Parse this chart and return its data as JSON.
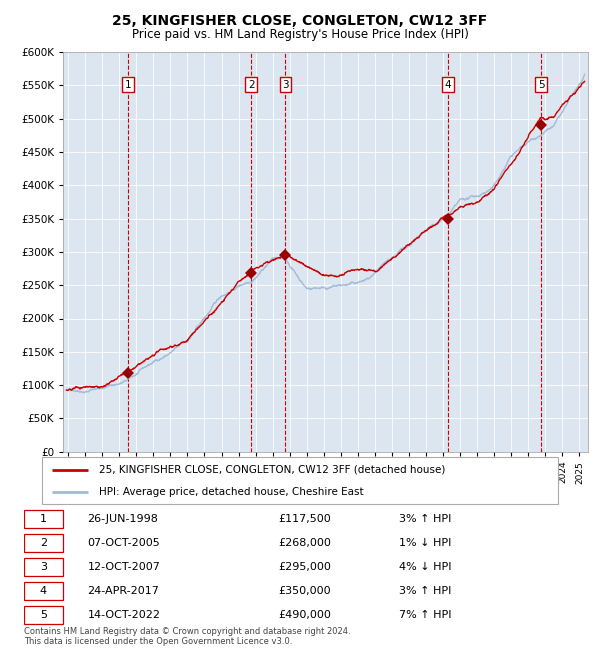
{
  "title": "25, KINGFISHER CLOSE, CONGLETON, CW12 3FF",
  "subtitle": "Price paid vs. HM Land Registry's House Price Index (HPI)",
  "ylim": [
    0,
    600000
  ],
  "yticks": [
    0,
    50000,
    100000,
    150000,
    200000,
    250000,
    300000,
    350000,
    400000,
    450000,
    500000,
    550000,
    600000
  ],
  "ytick_labels": [
    "£0",
    "£50K",
    "£100K",
    "£150K",
    "£200K",
    "£250K",
    "£300K",
    "£350K",
    "£400K",
    "£450K",
    "£500K",
    "£550K",
    "£600K"
  ],
  "x_start_year": 1995,
  "x_end_year": 2025,
  "plot_bg_color": "#dce6f1",
  "hpi_line_color": "#a0bcd8",
  "price_line_color": "#cc0000",
  "marker_color": "#990000",
  "vline_color_red": "#cc0000",
  "legend_label_price": "25, KINGFISHER CLOSE, CONGLETON, CW12 3FF (detached house)",
  "legend_label_hpi": "HPI: Average price, detached house, Cheshire East",
  "transactions": [
    {
      "num": 1,
      "date": "26-JUN-1998",
      "price": 117500,
      "year": 1998.5,
      "pct": "3%",
      "dir": "↑",
      "label": "1"
    },
    {
      "num": 2,
      "date": "07-OCT-2005",
      "price": 268000,
      "year": 2005.75,
      "pct": "1%",
      "dir": "↓",
      "label": "2"
    },
    {
      "num": 3,
      "date": "12-OCT-2007",
      "price": 295000,
      "year": 2007.75,
      "pct": "4%",
      "dir": "↓",
      "label": "3"
    },
    {
      "num": 4,
      "date": "24-APR-2017",
      "price": 350000,
      "year": 2017.3,
      "pct": "3%",
      "dir": "↑",
      "label": "4"
    },
    {
      "num": 5,
      "date": "14-OCT-2022",
      "price": 490000,
      "year": 2022.75,
      "pct": "7%",
      "dir": "↑",
      "label": "5"
    }
  ],
  "footnote1": "Contains HM Land Registry data © Crown copyright and database right 2024.",
  "footnote2": "This data is licensed under the Open Government Licence v3.0."
}
